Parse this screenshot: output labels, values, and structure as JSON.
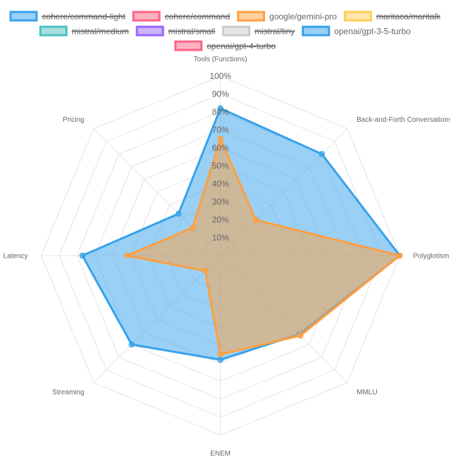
{
  "chart_data": {
    "type": "radar",
    "axes": [
      "Tools (Functions)",
      "Back-and-Forth Conversations",
      "Polyglotism",
      "MMLU",
      "ENEM",
      "Streaming",
      "Latency",
      "Pricing"
    ],
    "tick_labels": [
      "10%",
      "20%",
      "30%",
      "40%",
      "50%",
      "60%",
      "70%",
      "80%",
      "90%",
      "100%"
    ],
    "range": [
      0,
      100
    ],
    "legend": [
      {
        "name": "cohere/command-light",
        "color": "#36a2eb",
        "hidden": true
      },
      {
        "name": "cohere/command",
        "color": "#ff6384",
        "hidden": true
      },
      {
        "name": "google/gemini-pro",
        "color": "#ff9f40",
        "hidden": false
      },
      {
        "name": "maritaca/maritalk",
        "color": "#ffcd56",
        "hidden": true
      },
      {
        "name": "mistral/medium",
        "color": "#4bc0c0",
        "hidden": true
      },
      {
        "name": "mistral/small",
        "color": "#9966ff",
        "hidden": true
      },
      {
        "name": "mistral/tiny",
        "color": "#c9cbcf",
        "hidden": true
      },
      {
        "name": "openai/gpt-3-5-turbo",
        "color": "#36a2eb",
        "hidden": false
      },
      {
        "name": "openai/gpt-4-turbo",
        "color": "#ff6384",
        "hidden": true
      }
    ],
    "series": [
      {
        "name": "openai/gpt-3-5-turbo",
        "color": "#36a2eb",
        "values": [
          82,
          80,
          100,
          62,
          58,
          70,
          77,
          33
        ]
      },
      {
        "name": "google/gemini-pro",
        "color": "#ff9f40",
        "values": [
          65,
          28,
          100,
          63,
          55,
          12,
          52,
          22
        ]
      }
    ]
  }
}
